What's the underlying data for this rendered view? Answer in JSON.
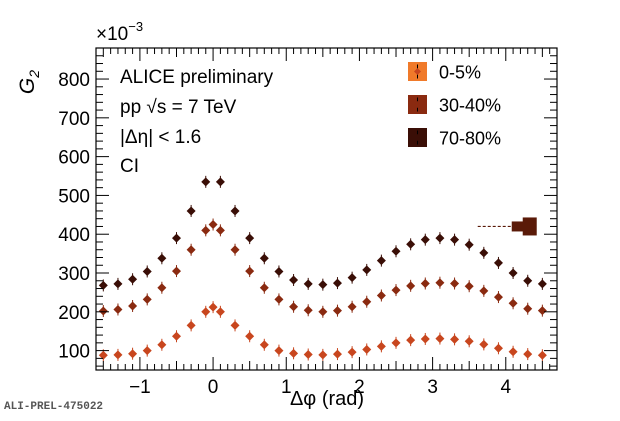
{
  "footer_id": "ALI-PREL-475022",
  "chart_data": {
    "type": "scatter",
    "title": "",
    "xlabel": "Δφ (rad)",
    "ylabel": "G",
    "ylabel_subscript": "2",
    "y_multiplier": "×10",
    "y_multiplier_exp": "−3",
    "xlim": [
      -1.6,
      4.7
    ],
    "ylim": [
      50,
      880
    ],
    "x_ticks": [
      -1,
      0,
      1,
      2,
      3,
      4
    ],
    "x_tick_labels": [
      "−1",
      "0",
      "1",
      "2",
      "3",
      "4"
    ],
    "y_ticks": [
      100,
      200,
      300,
      400,
      500,
      600,
      700,
      800
    ],
    "y_tick_labels": [
      "100",
      "200",
      "300",
      "400",
      "500",
      "600",
      "700",
      "800"
    ],
    "annotations": [
      "ALICE preliminary",
      "pp  √s = 7 TeV",
      "|Δη| < 1.6",
      "CI"
    ],
    "legend_position": "top-right",
    "systematic_marker": {
      "x": 4.3,
      "y": 420,
      "color": "#5a1a08"
    },
    "series": [
      {
        "name": "0-5%",
        "color": "#c8461e",
        "legend_color": "#f07a2a",
        "x": [
          -1.5,
          -1.3,
          -1.1,
          -0.9,
          -0.7,
          -0.5,
          -0.3,
          -0.1,
          0.0,
          0.1,
          0.3,
          0.5,
          0.7,
          0.9,
          1.1,
          1.3,
          1.5,
          1.7,
          1.9,
          2.1,
          2.3,
          2.5,
          2.7,
          2.9,
          3.1,
          3.3,
          3.5,
          3.7,
          3.9,
          4.1,
          4.3,
          4.5
        ],
        "y": [
          88,
          89,
          92,
          100,
          115,
          137,
          165,
          200,
          212,
          200,
          165,
          137,
          115,
          100,
          93,
          90,
          89,
          91,
          96,
          103,
          111,
          120,
          127,
          130,
          131,
          129,
          124,
          116,
          106,
          97,
          91,
          88
        ]
      },
      {
        "name": "30-40%",
        "color": "#8a2a10",
        "legend_color": "#8a2a10",
        "x": [
          -1.5,
          -1.3,
          -1.1,
          -0.9,
          -0.7,
          -0.5,
          -0.3,
          -0.1,
          0.0,
          0.1,
          0.3,
          0.5,
          0.7,
          0.9,
          1.1,
          1.3,
          1.5,
          1.7,
          1.9,
          2.1,
          2.3,
          2.5,
          2.7,
          2.9,
          3.1,
          3.3,
          3.5,
          3.7,
          3.9,
          4.1,
          4.3,
          4.5
        ],
        "y": [
          202,
          206,
          215,
          232,
          262,
          305,
          360,
          410,
          425,
          410,
          360,
          305,
          262,
          232,
          213,
          204,
          200,
          203,
          213,
          226,
          242,
          256,
          267,
          273,
          275,
          273,
          266,
          254,
          238,
          222,
          208,
          203
        ]
      },
      {
        "name": "70-80%",
        "color": "#3a0e06",
        "legend_color": "#3a0e06",
        "x": [
          -1.5,
          -1.3,
          -1.1,
          -0.9,
          -0.7,
          -0.5,
          -0.3,
          -0.1,
          0.1,
          0.3,
          0.5,
          0.7,
          0.9,
          1.1,
          1.3,
          1.5,
          1.7,
          1.9,
          2.1,
          2.3,
          2.5,
          2.7,
          2.9,
          3.1,
          3.3,
          3.5,
          3.7,
          3.9,
          4.1,
          4.3,
          4.5
        ],
        "y": [
          268,
          272,
          284,
          304,
          338,
          390,
          460,
          535,
          535,
          460,
          390,
          338,
          304,
          282,
          272,
          270,
          274,
          288,
          308,
          332,
          356,
          374,
          386,
          390,
          386,
          373,
          352,
          326,
          300,
          280,
          272
        ]
      }
    ]
  }
}
